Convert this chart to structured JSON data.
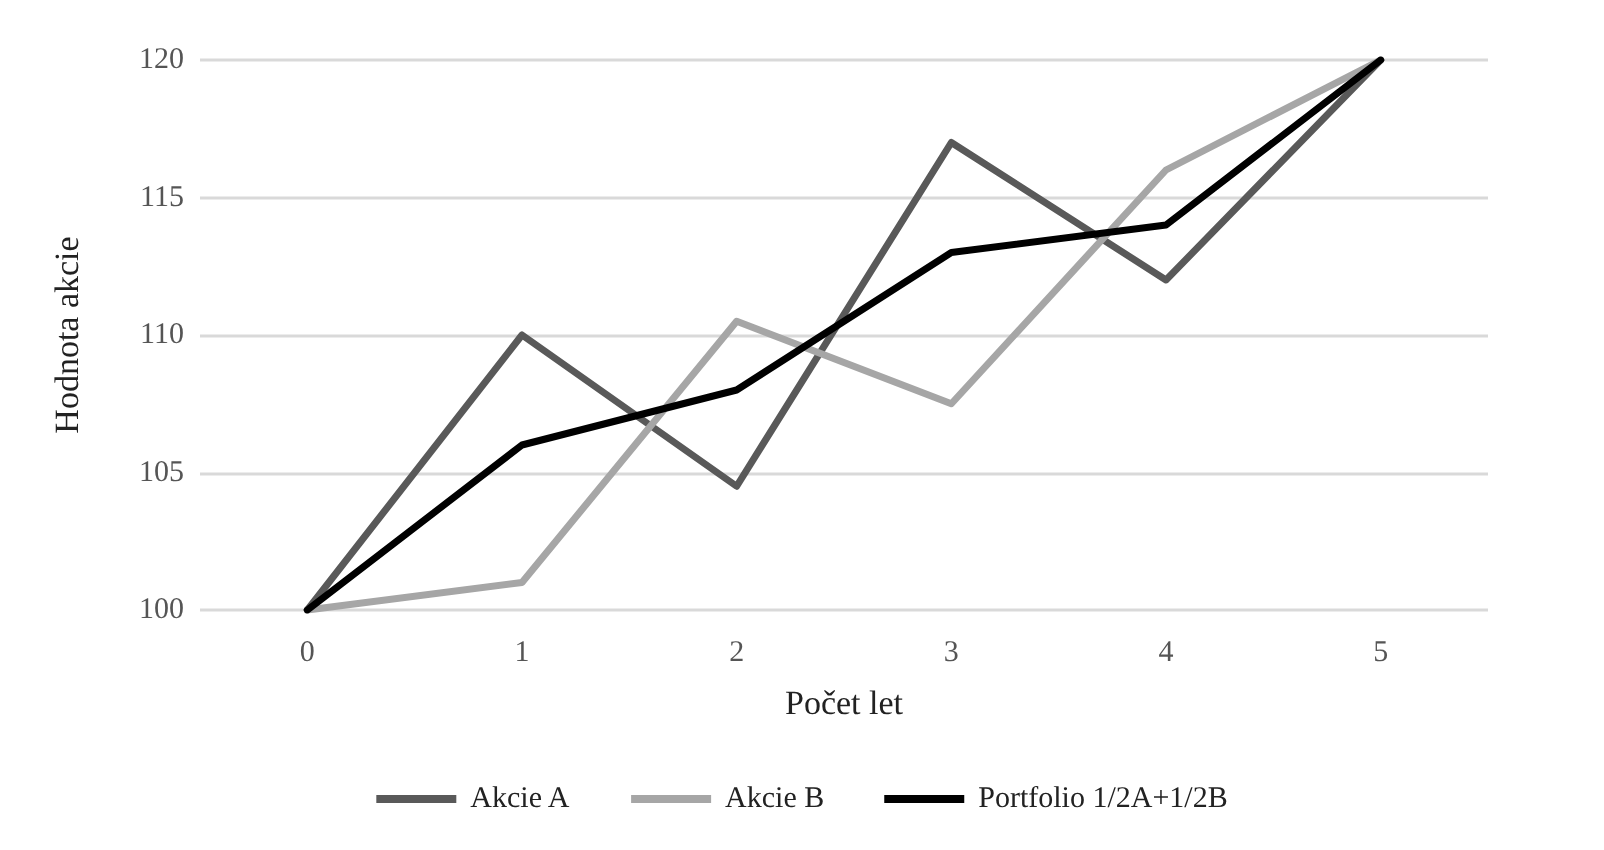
{
  "chart_data": {
    "type": "line",
    "xlabel": "Počet let",
    "ylabel": "Hodnota akcie",
    "categories": [
      "0",
      "1",
      "2",
      "3",
      "4",
      "5"
    ],
    "series": [
      {
        "name": "Akcie A",
        "color": "#595959",
        "values": [
          100,
          110,
          104.5,
          117,
          112,
          120
        ]
      },
      {
        "name": "Akcie B",
        "color": "#a6a6a6",
        "values": [
          100,
          101,
          110.5,
          107.5,
          116,
          120
        ]
      },
      {
        "name": "Portfolio 1/2A+1/2B",
        "color": "#000000",
        "values": [
          100,
          106,
          108,
          113,
          114,
          120
        ]
      }
    ],
    "ylim": [
      100,
      120
    ],
    "yticks": [
      100,
      105,
      110,
      115,
      120
    ],
    "grid": "y",
    "legend": "bottom",
    "marker": "none",
    "line_style": "solid"
  }
}
